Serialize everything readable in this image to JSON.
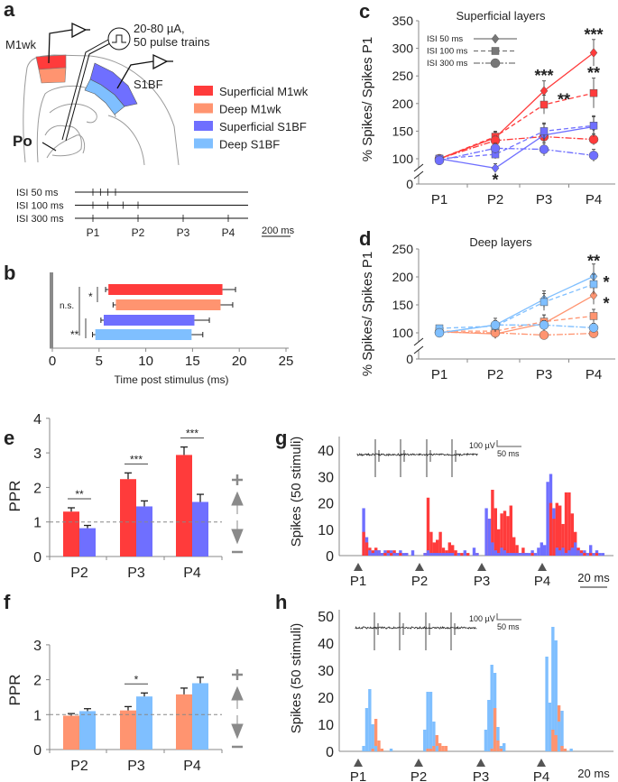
{
  "panel_labels": {
    "a": "a",
    "b": "b",
    "c": "c",
    "d": "d",
    "e": "e",
    "f": "f",
    "g": "g",
    "h": "h"
  },
  "colors": {
    "superficial_m1wk": "#ff3b3b",
    "deep_m1wk": "#ff9470",
    "superficial_s1bf": "#6f6fff",
    "deep_s1bf": "#7fbfff",
    "axis": "#888888"
  },
  "panel_a": {
    "stim_line1": "20-80 µA,",
    "stim_line2": "50 pulse trains",
    "m1wk": "M1wk",
    "s1bf": "S1BF",
    "po": "Po",
    "legend": [
      {
        "label": "Superficial M1wk",
        "color": "#ff3b3b"
      },
      {
        "label": "Deep M1wk",
        "color": "#ff9470"
      },
      {
        "label": "Superficial S1BF",
        "color": "#6f6fff"
      },
      {
        "label": "Deep S1BF",
        "color": "#7fbfff"
      }
    ],
    "isi_rows": [
      {
        "label": "ISI 50 ms",
        "isi_ms": 50
      },
      {
        "label": "ISI 100 ms",
        "isi_ms": 100
      },
      {
        "label": "ISI 300 ms",
        "isi_ms": 300
      }
    ],
    "pulse_labels": [
      "P1",
      "P2",
      "P3",
      "P4"
    ],
    "scale_bar": "200 ms"
  },
  "chart_data": [
    {
      "panel": "b",
      "type": "bar",
      "orientation": "horizontal",
      "categories": [
        "Superficial M1wk",
        "Deep M1wk",
        "Superficial S1BF",
        "Deep S1BF"
      ],
      "values": [
        {
          "start": 6.0,
          "end": 18.2,
          "error": 1.4
        },
        {
          "start": 6.8,
          "end": 18.0,
          "error": 1.3
        },
        {
          "start": 5.5,
          "end": 15.2,
          "error": 1.6
        },
        {
          "start": 4.6,
          "end": 14.9,
          "error": 1.2
        }
      ],
      "xlabel": "Time post stimulus (ms)",
      "xlim": [
        0,
        25
      ],
      "xticks": [
        "0",
        "5",
        "10",
        "15",
        "20",
        "25"
      ],
      "annotations": [
        "n.s.",
        "*",
        "**"
      ]
    },
    {
      "panel": "c",
      "type": "line",
      "title": "Superficial layers",
      "ylabel": "% Spikes/ Spikes P1",
      "categories": [
        "P1",
        "P2",
        "P3",
        "P4"
      ],
      "yticks": [
        "0",
        "100",
        "150",
        "200",
        "250",
        "300",
        "350"
      ],
      "ylim": [
        0,
        350
      ],
      "legend": [
        "ISI 50 ms",
        "ISI 100 ms",
        "ISI 300 ms"
      ],
      "series": [
        {
          "group": "Superficial M1wk",
          "isi": "ISI 50 ms",
          "values": [
            100,
            138,
            223,
            292
          ],
          "errors": [
            3,
            10,
            18,
            24
          ]
        },
        {
          "group": "Superficial M1wk",
          "isi": "ISI 100 ms",
          "values": [
            100,
            140,
            198,
            219
          ],
          "errors": [
            3,
            10,
            17,
            27
          ]
        },
        {
          "group": "Superficial M1wk",
          "isi": "ISI 300 ms",
          "values": [
            100,
            133,
            140,
            135
          ],
          "errors": [
            3,
            8,
            12,
            10
          ]
        },
        {
          "group": "Superficial S1BF",
          "isi": "ISI 50 ms",
          "values": [
            100,
            83,
            143,
            158
          ],
          "errors": [
            3,
            8,
            20,
            18
          ]
        },
        {
          "group": "Superficial S1BF",
          "isi": "ISI 100 ms",
          "values": [
            100,
            108,
            150,
            160
          ],
          "errors": [
            3,
            8,
            15,
            18
          ]
        },
        {
          "group": "Superficial S1BF",
          "isi": "ISI 300 ms",
          "values": [
            97,
            119,
            117,
            106
          ],
          "errors": [
            3,
            9,
            12,
            11
          ]
        }
      ],
      "annotations": [
        {
          "text": "***",
          "category": "P3",
          "y": 250
        },
        {
          "text": "**",
          "category": "P3",
          "y": 207
        },
        {
          "text": "***",
          "category": "P4",
          "y": 325
        },
        {
          "text": "**",
          "category": "P4",
          "y": 255
        },
        {
          "text": "*",
          "category": "P2",
          "y": 62
        }
      ]
    },
    {
      "panel": "d",
      "type": "line",
      "title": "Deep layers",
      "ylabel": "% Spikes/ Spikes P1",
      "categories": [
        "P1",
        "P2",
        "P3",
        "P4"
      ],
      "yticks": [
        "0",
        "100",
        "150",
        "200",
        "250"
      ],
      "ylim": [
        0,
        250
      ],
      "series": [
        {
          "group": "Deep M1wk",
          "isi": "ISI 50 ms",
          "values": [
            102,
            98,
            117,
            167
          ],
          "errors": [
            3,
            8,
            15,
            16
          ]
        },
        {
          "group": "Deep M1wk",
          "isi": "ISI 100 ms",
          "values": [
            103,
            103,
            120,
            130
          ],
          "errors": [
            3,
            8,
            12,
            12
          ]
        },
        {
          "group": "Deep M1wk",
          "isi": "ISI 300 ms",
          "values": [
            101,
            100,
            96,
            99
          ],
          "errors": [
            3,
            6,
            6,
            6
          ]
        },
        {
          "group": "Deep S1BF",
          "isi": "ISI 50 ms",
          "values": [
            100,
            114,
            160,
            201
          ],
          "errors": [
            3,
            12,
            15,
            22
          ]
        },
        {
          "group": "Deep S1BF",
          "isi": "ISI 100 ms",
          "values": [
            108,
            112,
            155,
            187
          ],
          "errors": [
            3,
            10,
            15,
            18
          ]
        },
        {
          "group": "Deep S1BF",
          "isi": "ISI 300 ms",
          "values": [
            100,
            114,
            114,
            109
          ],
          "errors": [
            3,
            8,
            8,
            8
          ]
        }
      ],
      "annotations": [
        {
          "text": "**",
          "category": "P4",
          "y": 228
        },
        {
          "text": "*",
          "category": "P4",
          "y": 182
        },
        {
          "text": "*",
          "category": "P4",
          "y": 162
        }
      ]
    },
    {
      "panel": "e",
      "type": "bar",
      "ylabel": "PPR",
      "categories": [
        "P2",
        "P3",
        "P4"
      ],
      "yticks": [
        "0",
        "1",
        "2",
        "3",
        "4"
      ],
      "ylim": [
        0,
        4
      ],
      "reference_line": 1,
      "series": [
        {
          "group": "Superficial M1wk",
          "values": [
            1.3,
            2.24,
            2.94
          ],
          "errors": [
            0.11,
            0.18,
            0.23
          ]
        },
        {
          "group": "Superficial S1BF",
          "values": [
            0.82,
            1.45,
            1.58
          ],
          "errors": [
            0.08,
            0.16,
            0.22
          ]
        }
      ],
      "significance": [
        "**",
        "***",
        "***"
      ],
      "side_icons": [
        "plus-icon",
        "arrow-up-icon",
        "arrow-down-icon",
        "minus-icon"
      ]
    },
    {
      "panel": "f",
      "type": "bar",
      "ylabel": "PPR",
      "categories": [
        "P2",
        "P3",
        "P4"
      ],
      "yticks": [
        "0",
        "1",
        "2",
        "3"
      ],
      "ylim": [
        0,
        3
      ],
      "reference_line": 1,
      "series": [
        {
          "group": "Deep M1wk",
          "values": [
            0.97,
            1.12,
            1.58
          ],
          "errors": [
            0.06,
            0.11,
            0.18
          ]
        },
        {
          "group": "Deep S1BF",
          "values": [
            1.1,
            1.52,
            1.9
          ],
          "errors": [
            0.07,
            0.1,
            0.17
          ]
        }
      ],
      "significance": [
        "",
        "*",
        ""
      ],
      "side_icons": [
        "plus-icon",
        "arrow-up-icon",
        "arrow-down-icon",
        "minus-icon"
      ]
    },
    {
      "panel": "g",
      "type": "bar",
      "subtype": "histogram",
      "ylabel": "Spikes (50 stimuli)",
      "yticks": [
        "0",
        "10",
        "20",
        "30",
        "40"
      ],
      "ylim": [
        0,
        45
      ],
      "pulse_labels": [
        "P1",
        "P2",
        "P3",
        "P4"
      ],
      "pulse_times_ms": [
        0,
        50,
        100,
        150
      ],
      "bin_ms": 2.5,
      "scale_bar": "20 ms",
      "trace_scale": {
        "voltage": "100 µV",
        "time": "50 ms"
      },
      "series": [
        {
          "group": "Superficial M1wk",
          "bins_per_pulse": [
            [
              0,
              9,
              5,
              3,
              2,
              3,
              2,
              1,
              1,
              2,
              1,
              2,
              1,
              1,
              0,
              1,
              0,
              0,
              0,
              0
            ],
            [
              0,
              1,
              22,
              9,
              5,
              6,
              9,
              3,
              2,
              5,
              4,
              2,
              1,
              1,
              0,
              1,
              0,
              0,
              1,
              0
            ],
            [
              0,
              0,
              14,
              25,
              18,
              10,
              16,
              17,
              15,
              19,
              7,
              4,
              1,
              3,
              1,
              0,
              1,
              0,
              0,
              0
            ],
            [
              0,
              0,
              20,
              14,
              20,
              19,
              12,
              24,
              24,
              16,
              9,
              3,
              2,
              1,
              1,
              1,
              0,
              1,
              0,
              0
            ]
          ]
        },
        {
          "group": "Superficial S1BF",
          "bins_per_pulse": [
            [
              0,
              18,
              7,
              2,
              1,
              2,
              2,
              1,
              2,
              1,
              2,
              1,
              1,
              2,
              1,
              1,
              0,
              2,
              0,
              0
            ],
            [
              0,
              1,
              2,
              1,
              1,
              1,
              1,
              1,
              1,
              1,
              1,
              0,
              1,
              0,
              2,
              0,
              0,
              3,
              1,
              0
            ],
            [
              0,
              18,
              14,
              5,
              2,
              1,
              3,
              2,
              1,
              1,
              1,
              1,
              1,
              1,
              1,
              1,
              2,
              1,
              3,
              5
            ],
            [
              4,
              28,
              31,
              18,
              3,
              2,
              3,
              1,
              2,
              3,
              5,
              2,
              1,
              2,
              1,
              4,
              1,
              2,
              1,
              1
            ]
          ]
        }
      ]
    },
    {
      "panel": "h",
      "type": "bar",
      "subtype": "histogram",
      "ylabel": "Spikes (50 stimuli)",
      "yticks": [
        "0",
        "10",
        "20",
        "30",
        "40",
        "50"
      ],
      "ylim": [
        0,
        52
      ],
      "pulse_labels": [
        "P1",
        "P2",
        "P3",
        "P4"
      ],
      "pulse_times_ms": [
        0,
        50,
        100,
        150
      ],
      "bin_ms": 2.5,
      "scale_bar": "20 ms",
      "trace_scale": {
        "voltage": "100 µV",
        "time": "50 ms"
      },
      "series": [
        {
          "group": "Deep S1BF",
          "bins_per_pulse": [
            [
              0,
              2,
              16,
              23,
              10,
              2,
              0,
              0,
              0,
              0,
              1,
              0
            ],
            [
              0,
              8,
              22,
              22,
              11,
              2,
              0,
              0,
              0,
              0,
              0,
              0
            ],
            [
              0,
              8,
              19,
              32,
              29,
              9,
              2,
              3,
              0,
              0,
              0,
              0
            ],
            [
              0,
              35,
              18,
              46,
              41,
              11,
              15,
              1,
              0,
              1,
              0,
              0
            ]
          ]
        },
        {
          "group": "Deep M1wk",
          "bins_per_pulse": [
            [
              0,
              0,
              0,
              0,
              1,
              12,
              4,
              1,
              0,
              0,
              0,
              0
            ],
            [
              0,
              0,
              1,
              1,
              2,
              6,
              3,
              2,
              2,
              0,
              0,
              0
            ],
            [
              0,
              0,
              0,
              1,
              16,
              4,
              1,
              0,
              0,
              0,
              0,
              0
            ],
            [
              0,
              0,
              0,
              8,
              6,
              17,
              2,
              1,
              0,
              0,
              0,
              0
            ]
          ]
        }
      ]
    }
  ]
}
